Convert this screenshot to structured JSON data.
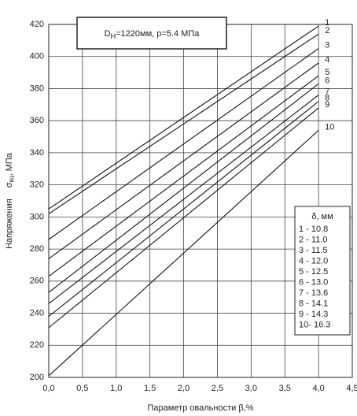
{
  "chart_data": {
    "type": "line",
    "title_parts": [
      "D",
      "H",
      "=1220мм,  p=5.4 МПа"
    ],
    "x_label": "Параметр овальности  β,%",
    "y_label_parts": [
      "Напряжения",
      "σ",
      "кц",
      ", МПа"
    ],
    "x": [
      0,
      4
    ],
    "series": [
      {
        "name": "1",
        "color": "#111111",
        "values": [
          305,
          419
        ]
      },
      {
        "name": "2",
        "color": "#111111",
        "values": [
          302,
          414
        ]
      },
      {
        "name": "3",
        "color": "#111111",
        "values": [
          286,
          405
        ]
      },
      {
        "name": "4",
        "color": "#111111",
        "values": [
          274,
          396
        ]
      },
      {
        "name": "5",
        "color": "#111111",
        "values": [
          263,
          388
        ]
      },
      {
        "name": "6",
        "color": "#111111",
        "values": [
          253,
          383
        ]
      },
      {
        "name": "7",
        "color": "#111111",
        "values": [
          246,
          376
        ]
      },
      {
        "name": "8",
        "color": "#111111",
        "values": [
          238,
          372
        ]
      },
      {
        "name": "9",
        "color": "#111111",
        "values": [
          231,
          368
        ]
      },
      {
        "name": "10",
        "color": "#111111",
        "values": [
          201,
          354
        ]
      }
    ],
    "legend_title": "δ, мм",
    "legend_items": [
      "1 - 10.8",
      "2 - 11.0",
      "3 - 11.5",
      "4 - 12.0",
      "5 - 12.5",
      "6 - 13.0",
      "7 - 13.6",
      "8 - 14.1",
      "9 - 14.3",
      "10- 16.3"
    ],
    "xlim": [
      0,
      4.5
    ],
    "xticks": [
      {
        "value": 0,
        "label": "0,0"
      },
      {
        "value": 0.5,
        "label": "0,5"
      },
      {
        "value": 1,
        "label": "1,0"
      },
      {
        "value": 1.5,
        "label": "1,5"
      },
      {
        "value": 2,
        "label": "2,0"
      },
      {
        "value": 2.5,
        "label": "2,5"
      },
      {
        "value": 3,
        "label": "3,0"
      },
      {
        "value": 3.5,
        "label": "3,5"
      },
      {
        "value": 4,
        "label": "4,0"
      },
      {
        "value": 4.5,
        "label": "4,5"
      }
    ],
    "ylim": [
      200,
      420
    ],
    "yticks": [
      200,
      220,
      240,
      260,
      280,
      300,
      320,
      340,
      360,
      380,
      400,
      420
    ],
    "grid": true
  }
}
